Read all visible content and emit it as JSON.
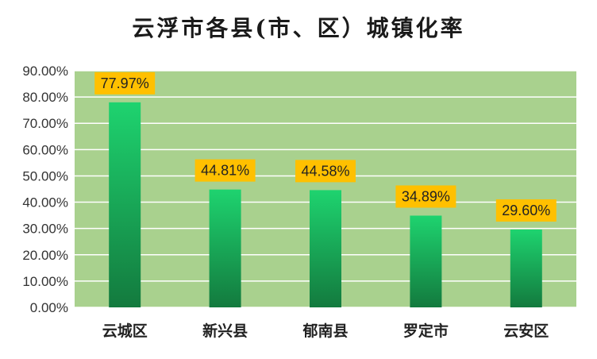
{
  "chart_data": {
    "type": "bar",
    "title": "云浮市各县(市、区）城镇化率",
    "categories": [
      "云城区",
      "新兴县",
      "郁南县",
      "罗定市",
      "云安区"
    ],
    "values": [
      77.97,
      44.81,
      44.58,
      34.89,
      29.6
    ],
    "data_labels": [
      "77.97%",
      "44.81%",
      "44.58%",
      "34.89%",
      "29.60%"
    ],
    "y_ticks": [
      "0.00%",
      "10.00%",
      "20.00%",
      "30.00%",
      "40.00%",
      "50.00%",
      "60.00%",
      "70.00%",
      "80.00%",
      "90.00%"
    ],
    "ylim": [
      0,
      90
    ],
    "xlabel": "",
    "ylabel": "",
    "grid": true,
    "legend": "none",
    "colors": {
      "plot_background": "#a9d18e",
      "gridline": "#ffffff",
      "bar_top": "#1ed36f",
      "bar_bottom": "#137a3e",
      "data_label_fill": "#ffc000"
    }
  }
}
